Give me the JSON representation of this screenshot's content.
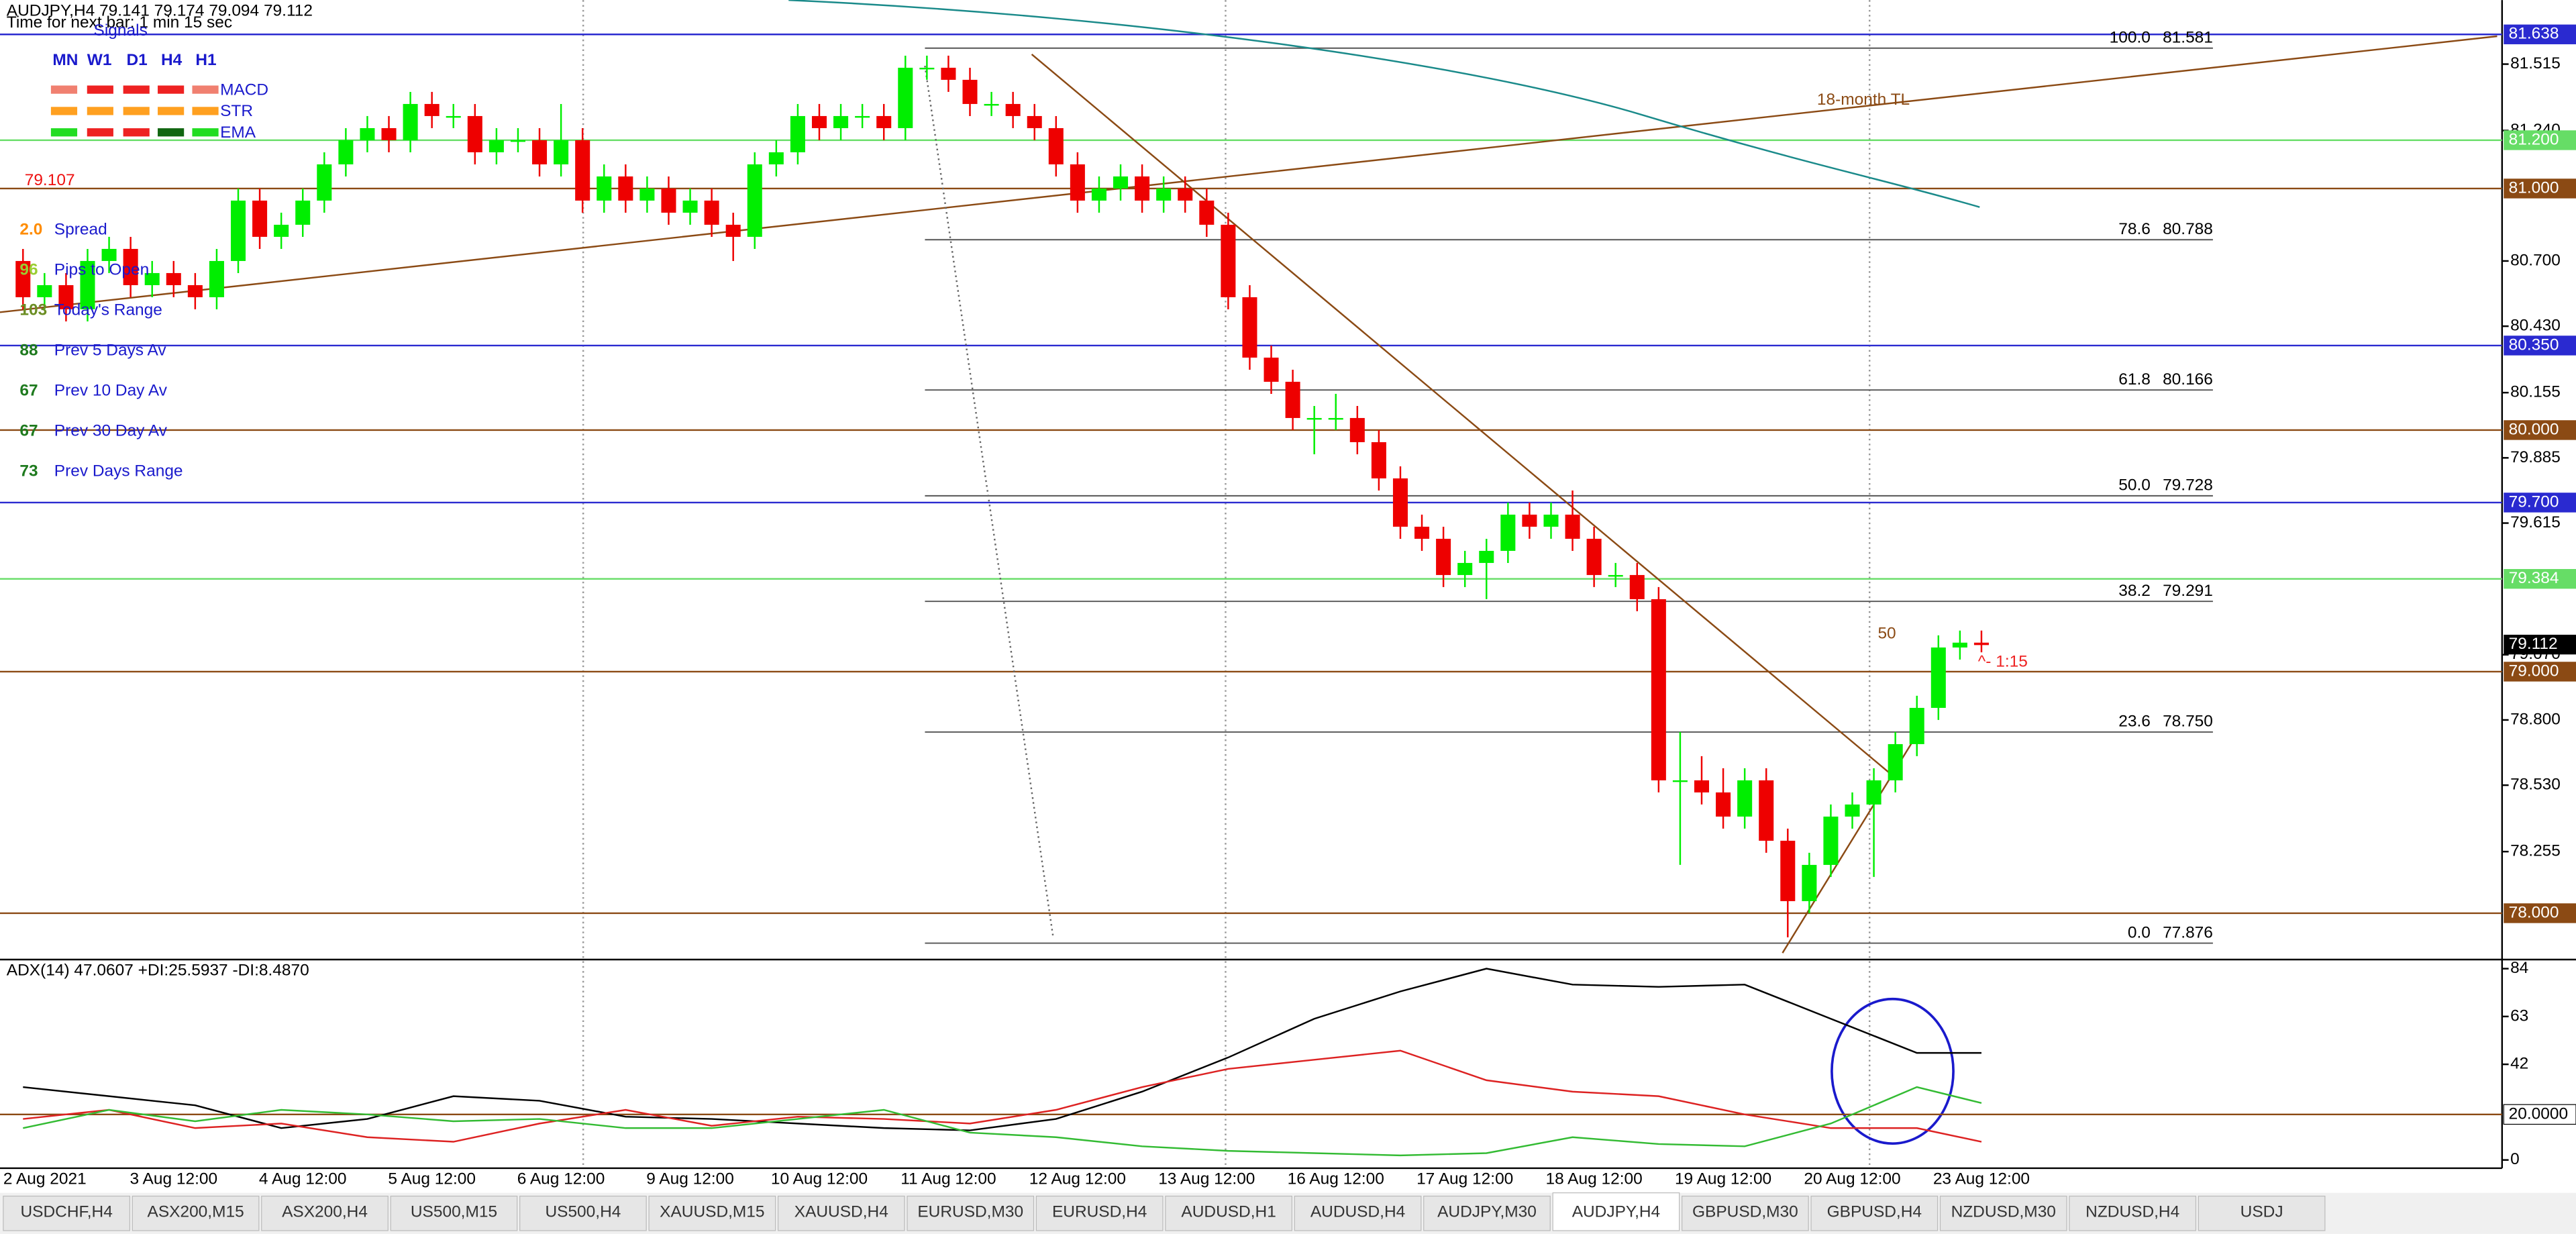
{
  "header": {
    "symbol_line": "AUDJPY,H4  79.141 79.174 79.094 79.112",
    "timer": "Time for next bar: 1 min 15 sec"
  },
  "signals": {
    "title": "Signals",
    "timeframes": [
      "MN",
      "W1",
      "D1",
      "H4",
      "H1"
    ],
    "rows": [
      "MACD",
      "STR",
      "EMA"
    ]
  },
  "info": {
    "price": "79.107",
    "items": [
      {
        "value": "2.0",
        "label": "Spread",
        "color": "#ff8c00"
      },
      {
        "value": 96,
        "label": "Pips to Open",
        "color": "#9acd32"
      },
      {
        "value": 103,
        "label": "Today's Range",
        "color": "#6b8e23"
      },
      {
        "value": 88,
        "label": "Prev 5 Days Av",
        "color": "#1e7a1e"
      },
      {
        "value": 67,
        "label": "Prev 10 Day Av",
        "color": "#1e7a1e"
      },
      {
        "value": 67,
        "label": "Prev 30 Day Av",
        "color": "#1e7a1e"
      },
      {
        "value": 73,
        "label": "Prev Days Range",
        "color": "#1e7a1e"
      }
    ]
  },
  "chart_data": {
    "type": "candlestick",
    "categories": [
      "2 Aug 2021",
      null,
      null,
      null,
      null,
      null,
      null,
      "3 Aug 12:00",
      null,
      null,
      null,
      null,
      null,
      "4 Aug 12:00",
      null,
      null,
      null,
      null,
      null,
      "5 Aug 12:00",
      null,
      null,
      null,
      null,
      null,
      "6 Aug 12:00",
      null,
      null,
      null,
      null,
      null,
      "9 Aug 12:00",
      null,
      null,
      null,
      null,
      null,
      "10 Aug 12:00",
      null,
      null,
      null,
      null,
      null,
      "11 Aug 12:00",
      null,
      null,
      null,
      null,
      null,
      "12 Aug 12:00",
      null,
      null,
      null,
      null,
      null,
      "13 Aug 12:00",
      null,
      null,
      null,
      null,
      null,
      "16 Aug 12:00",
      null,
      null,
      null,
      null,
      null,
      "17 Aug 12:00",
      null,
      null,
      null,
      null,
      null,
      "18 Aug 12:00",
      null,
      null,
      null,
      null,
      null,
      "19 Aug 12:00",
      null,
      null,
      null,
      null,
      null,
      "20 Aug 12:00",
      null,
      null,
      null,
      null,
      null,
      "23 Aug 12:00"
    ],
    "candles": [
      [
        80.7,
        80.75,
        80.5,
        80.55
      ],
      [
        80.55,
        80.65,
        80.5,
        80.6
      ],
      [
        80.6,
        80.65,
        80.45,
        80.5
      ],
      [
        80.5,
        80.75,
        80.45,
        80.7
      ],
      [
        80.7,
        80.8,
        80.65,
        80.75
      ],
      [
        80.75,
        80.8,
        80.55,
        80.6
      ],
      [
        80.6,
        80.7,
        80.55,
        80.65
      ],
      [
        80.65,
        80.7,
        80.55,
        80.6
      ],
      [
        80.6,
        80.65,
        80.5,
        80.55
      ],
      [
        80.55,
        80.75,
        80.5,
        80.7
      ],
      [
        80.7,
        81.0,
        80.65,
        80.95
      ],
      [
        80.95,
        81.0,
        80.75,
        80.8
      ],
      [
        80.8,
        80.9,
        80.75,
        80.85
      ],
      [
        80.85,
        81.0,
        80.8,
        80.95
      ],
      [
        80.95,
        81.15,
        80.9,
        81.1
      ],
      [
        81.1,
        81.25,
        81.05,
        81.2
      ],
      [
        81.2,
        81.3,
        81.15,
        81.25
      ],
      [
        81.25,
        81.3,
        81.15,
        81.2
      ],
      [
        81.2,
        81.4,
        81.15,
        81.35
      ],
      [
        81.35,
        81.4,
        81.25,
        81.3
      ],
      [
        81.3,
        81.35,
        81.25,
        81.3
      ],
      [
        81.3,
        81.35,
        81.1,
        81.15
      ],
      [
        81.15,
        81.25,
        81.1,
        81.2
      ],
      [
        81.2,
        81.25,
        81.15,
        81.2
      ],
      [
        81.2,
        81.25,
        81.05,
        81.1
      ],
      [
        81.1,
        81.35,
        81.05,
        81.2
      ],
      [
        81.2,
        81.25,
        80.9,
        80.95
      ],
      [
        80.95,
        81.1,
        80.9,
        81.05
      ],
      [
        81.05,
        81.1,
        80.9,
        80.95
      ],
      [
        80.95,
        81.05,
        80.9,
        81.0
      ],
      [
        81.0,
        81.05,
        80.85,
        80.9
      ],
      [
        80.9,
        81.0,
        80.85,
        80.95
      ],
      [
        80.95,
        81.0,
        80.8,
        80.85
      ],
      [
        80.85,
        80.9,
        80.7,
        80.8
      ],
      [
        80.8,
        81.15,
        80.75,
        81.1
      ],
      [
        81.1,
        81.2,
        81.05,
        81.15
      ],
      [
        81.15,
        81.35,
        81.1,
        81.3
      ],
      [
        81.3,
        81.35,
        81.2,
        81.25
      ],
      [
        81.25,
        81.35,
        81.2,
        81.3
      ],
      [
        81.3,
        81.35,
        81.25,
        81.3
      ],
      [
        81.3,
        81.35,
        81.2,
        81.25
      ],
      [
        81.25,
        81.55,
        81.2,
        81.5
      ],
      [
        81.5,
        81.55,
        81.45,
        81.5
      ],
      [
        81.5,
        81.55,
        81.4,
        81.45
      ],
      [
        81.45,
        81.5,
        81.3,
        81.35
      ],
      [
        81.35,
        81.4,
        81.3,
        81.35
      ],
      [
        81.35,
        81.4,
        81.25,
        81.3
      ],
      [
        81.3,
        81.35,
        81.2,
        81.25
      ],
      [
        81.25,
        81.3,
        81.05,
        81.1
      ],
      [
        81.1,
        81.15,
        80.9,
        80.95
      ],
      [
        80.95,
        81.05,
        80.9,
        81.0
      ],
      [
        81.0,
        81.1,
        80.95,
        81.05
      ],
      [
        81.05,
        81.1,
        80.9,
        80.95
      ],
      [
        80.95,
        81.05,
        80.9,
        81.0
      ],
      [
        81.0,
        81.05,
        80.9,
        80.95
      ],
      [
        80.95,
        81.0,
        80.8,
        80.85
      ],
      [
        80.85,
        80.9,
        80.5,
        80.55
      ],
      [
        80.55,
        80.6,
        80.25,
        80.3
      ],
      [
        80.3,
        80.35,
        80.15,
        80.2
      ],
      [
        80.2,
        80.25,
        80.0,
        80.05
      ],
      [
        80.05,
        80.1,
        79.9,
        80.05
      ],
      [
        80.05,
        80.15,
        80.0,
        80.05
      ],
      [
        80.05,
        80.1,
        79.9,
        79.95
      ],
      [
        79.95,
        80.0,
        79.75,
        79.8
      ],
      [
        79.8,
        79.85,
        79.55,
        79.6
      ],
      [
        79.6,
        79.65,
        79.5,
        79.55
      ],
      [
        79.55,
        79.6,
        79.35,
        79.4
      ],
      [
        79.4,
        79.5,
        79.35,
        79.45
      ],
      [
        79.45,
        79.55,
        79.3,
        79.5
      ],
      [
        79.5,
        79.7,
        79.45,
        79.65
      ],
      [
        79.65,
        79.7,
        79.55,
        79.6
      ],
      [
        79.6,
        79.7,
        79.55,
        79.65
      ],
      [
        79.65,
        79.75,
        79.5,
        79.55
      ],
      [
        79.55,
        79.6,
        79.35,
        79.4
      ],
      [
        79.4,
        79.45,
        79.35,
        79.4
      ],
      [
        79.4,
        79.45,
        79.25,
        79.3
      ],
      [
        79.3,
        79.35,
        78.5,
        78.55
      ],
      [
        78.55,
        78.75,
        78.2,
        78.55
      ],
      [
        78.55,
        78.65,
        78.45,
        78.5
      ],
      [
        78.5,
        78.6,
        78.35,
        78.4
      ],
      [
        78.4,
        78.6,
        78.35,
        78.55
      ],
      [
        78.55,
        78.6,
        78.25,
        78.3
      ],
      [
        78.3,
        78.35,
        77.9,
        78.05
      ],
      [
        78.05,
        78.25,
        78.0,
        78.2
      ],
      [
        78.2,
        78.45,
        78.15,
        78.4
      ],
      [
        78.4,
        78.5,
        78.35,
        78.45
      ],
      [
        78.45,
        78.6,
        78.15,
        78.55
      ],
      [
        78.55,
        78.75,
        78.5,
        78.7
      ],
      [
        78.7,
        78.9,
        78.65,
        78.85
      ],
      [
        78.85,
        79.15,
        78.8,
        79.1
      ],
      [
        79.1,
        79.17,
        79.05,
        79.12
      ],
      [
        79.12,
        79.17,
        79.08,
        79.11
      ]
    ],
    "up_color": "#00ee00",
    "down_color": "#ee0000",
    "ylim": [
      77.815,
      81.78
    ],
    "yticks": [
      {
        "value": 81.515,
        "label": "81.515"
      },
      {
        "value": 81.24,
        "label": "81.240"
      },
      {
        "value": 80.7,
        "label": "80.700"
      },
      {
        "value": 80.43,
        "label": "80.430"
      },
      {
        "value": 80.155,
        "label": "80.155"
      },
      {
        "value": 79.885,
        "label": "79.885"
      },
      {
        "value": 79.615,
        "label": "79.615"
      },
      {
        "value": 79.07,
        "label": "79.070"
      },
      {
        "value": 78.8,
        "label": "78.800"
      },
      {
        "value": 78.53,
        "label": "78.530"
      },
      {
        "value": 78.255,
        "label": "78.255"
      }
    ],
    "levels": [
      {
        "value": 81.638,
        "label": "81.638",
        "color": "#2a2ad0"
      },
      {
        "value": 81.2,
        "label": "81.200",
        "color": "#66dd66"
      },
      {
        "value": 81.0,
        "label": "81.000",
        "color": "#8b4a14"
      },
      {
        "value": 80.35,
        "label": "80.350",
        "color": "#2a2ad0"
      },
      {
        "value": 80.0,
        "label": "80.000",
        "color": "#8b4a14"
      },
      {
        "value": 79.7,
        "label": "79.700",
        "color": "#2a2ad0"
      },
      {
        "value": 79.384,
        "label": "79.384",
        "color": "#66dd66"
      },
      {
        "value": 79.0,
        "label": "79.000",
        "color": "#8b4a14"
      },
      {
        "value": 78.0,
        "label": "78.000",
        "color": "#8b4a14"
      }
    ],
    "current": {
      "value": 79.112,
      "label": "79.112"
    },
    "fib": [
      {
        "level": "100.0",
        "price": {
          "value": 81.581,
          "label": "81.581"
        }
      },
      {
        "level": "78.6",
        "price": {
          "value": 80.788,
          "label": "80.788"
        }
      },
      {
        "level": "61.8",
        "price": {
          "value": 80.166,
          "label": "80.166"
        }
      },
      {
        "level": "50.0",
        "price": {
          "value": 79.728,
          "label": "79.728"
        }
      },
      {
        "level": "38.2",
        "price": {
          "value": 79.291,
          "label": "79.291"
        }
      },
      {
        "level": "23.6",
        "price": {
          "value": 78.75,
          "label": "78.750"
        }
      },
      {
        "level": "0.0",
        "price": {
          "value": 77.876,
          "label": "77.876"
        }
      }
    ],
    "annotations": [
      "18-month TL",
      "50",
      "^- 1:15"
    ]
  },
  "adx": {
    "type": "line",
    "title": "ADX(14) 47.0607 +DI:25.5937 -DI:8.4870",
    "x_index": [
      0,
      4,
      8,
      12,
      16,
      20,
      24,
      28,
      32,
      36,
      40,
      44,
      48,
      52,
      56,
      60,
      64,
      68,
      72,
      76,
      80,
      84,
      88,
      91
    ],
    "series": [
      {
        "color": "#000000",
        "values": [
          32,
          28,
          24,
          14,
          18,
          28,
          26,
          19,
          18,
          16,
          14,
          13,
          18,
          30,
          45,
          62,
          74,
          84,
          77,
          76,
          77,
          62,
          47,
          47
        ]
      },
      {
        "color": "#dd2222",
        "values": [
          18,
          22,
          14,
          16,
          10,
          8,
          16,
          22,
          15,
          19,
          18,
          16,
          22,
          32,
          40,
          44,
          48,
          35,
          30,
          28,
          20,
          14,
          14,
          8
        ]
      },
      {
        "color": "#33bb33",
        "values": [
          14,
          22,
          17,
          22,
          20,
          17,
          18,
          14,
          14,
          18,
          22,
          12,
          10,
          6,
          4,
          3,
          2,
          3,
          10,
          7,
          6,
          16,
          32,
          25
        ]
      }
    ],
    "ylim": [
      0,
      88
    ],
    "yticks": [
      84,
      63,
      42,
      0
    ],
    "level": {
      "value": 20,
      "label": "20.0000"
    }
  },
  "tabs": [
    "USDCHF,H4",
    "ASX200,M15",
    "ASX200,H4",
    "US500,M15",
    "US500,H4",
    "XAUUSD,M15",
    "XAUUSD,H4",
    "EURUSD,M30",
    "EURUSD,H4",
    "AUDUSD,H1",
    "AUDUSD,H4",
    "AUDJPY,M30",
    "AUDJPY,H4",
    "GBPUSD,M30",
    "GBPUSD,H4",
    "NZDUSD,M30",
    "NZDUSD,H4",
    "USDJ"
  ],
  "active_tab": 12
}
